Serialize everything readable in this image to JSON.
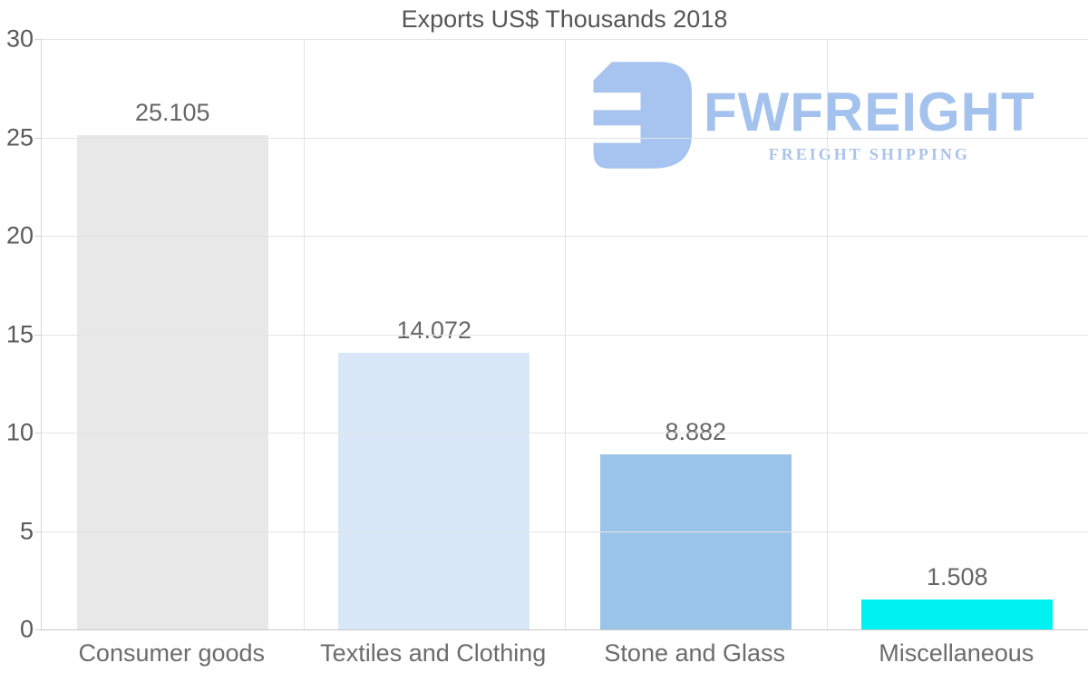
{
  "chart_data": {
    "type": "bar",
    "title": "Exports US$ Thousands 2018",
    "categories": [
      "Consumer goods",
      "Textiles and Clothing",
      "Stone and Glass",
      "Miscellaneous"
    ],
    "values": [
      25.105,
      14.072,
      8.882,
      1.508
    ],
    "value_labels": [
      "25.105",
      "14.072",
      "8.882",
      "1.508"
    ],
    "bar_colors": [
      "#e8e8e8",
      "#d8e8f8",
      "#9ac5e8",
      "#00f1f1"
    ],
    "xlabel": "",
    "ylabel": "",
    "ylim": [
      0,
      30
    ],
    "yticks": [
      0,
      5,
      10,
      15,
      20,
      25,
      30
    ],
    "grid": true,
    "legend": false
  },
  "watermark": {
    "name": "FWFREIGHT",
    "subtitle": "FREIGHT SHIPPING",
    "color": "#a4c2ee"
  }
}
